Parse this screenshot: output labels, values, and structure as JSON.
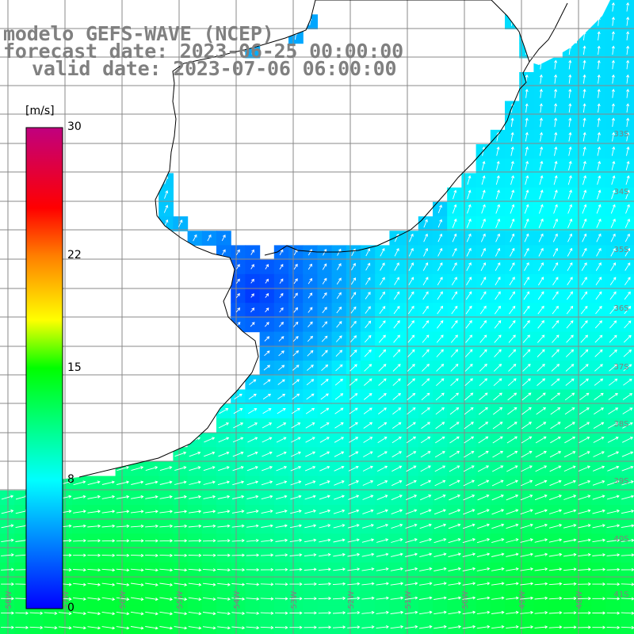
{
  "title": {
    "line1": "modelo GEFS-WAVE (NCEP)",
    "line2": "forecast date: 2023-06-25 00:00:00",
    "line3": "valid date: 2023-07-06 06:00:00"
  },
  "colorbar": {
    "unit": "[m/s]",
    "min": 0,
    "max": 30,
    "ticks": [
      {
        "label": "30",
        "value": 30
      },
      {
        "label": "22",
        "value": 22
      },
      {
        "label": "15",
        "value": 15
      },
      {
        "label": "8",
        "value": 8
      },
      {
        "label": "0",
        "value": 0
      }
    ],
    "stops": [
      {
        "value": 0,
        "color": "#0000ff"
      },
      {
        "value": 8,
        "color": "#00ffff"
      },
      {
        "value": 15,
        "color": "#00ff00"
      },
      {
        "value": 18,
        "color": "#ffff00"
      },
      {
        "value": 22,
        "color": "#ff7f00"
      },
      {
        "value": 25,
        "color": "#ff0000"
      },
      {
        "value": 30,
        "color": "#c0007f"
      }
    ]
  },
  "colors": {
    "land": "#ffffff",
    "grid": "#888888",
    "coast": "#000000",
    "arrow": "#ffffff",
    "label": "#808080"
  },
  "graticule": {
    "lat_labels": [
      {
        "label": "33S",
        "value": -33
      },
      {
        "label": "34S",
        "value": -34
      },
      {
        "label": "35S",
        "value": -35
      },
      {
        "label": "36S",
        "value": -36
      },
      {
        "label": "37S",
        "value": -37
      },
      {
        "label": "38S",
        "value": -38
      },
      {
        "label": "39S",
        "value": -39
      },
      {
        "label": "40S",
        "value": -40
      },
      {
        "label": "41S",
        "value": -41
      }
    ],
    "lon_labels": [
      {
        "label": "58W",
        "value": -58
      },
      {
        "label": "57W",
        "value": -57
      },
      {
        "label": "56W",
        "value": -56
      },
      {
        "label": "55W",
        "value": -55
      },
      {
        "label": "54W",
        "value": -54
      },
      {
        "label": "53W",
        "value": -53
      },
      {
        "label": "52W",
        "value": -52
      },
      {
        "label": "51W",
        "value": -51
      },
      {
        "label": "50W",
        "value": -50
      },
      {
        "label": "49W",
        "value": -49
      },
      {
        "label": "48W",
        "value": -48
      }
    ]
  },
  "wind_field": {
    "description_units": "m/s",
    "north_speed": 5.5,
    "south_speed": 12.5,
    "estuary_speed": 1.5
  }
}
